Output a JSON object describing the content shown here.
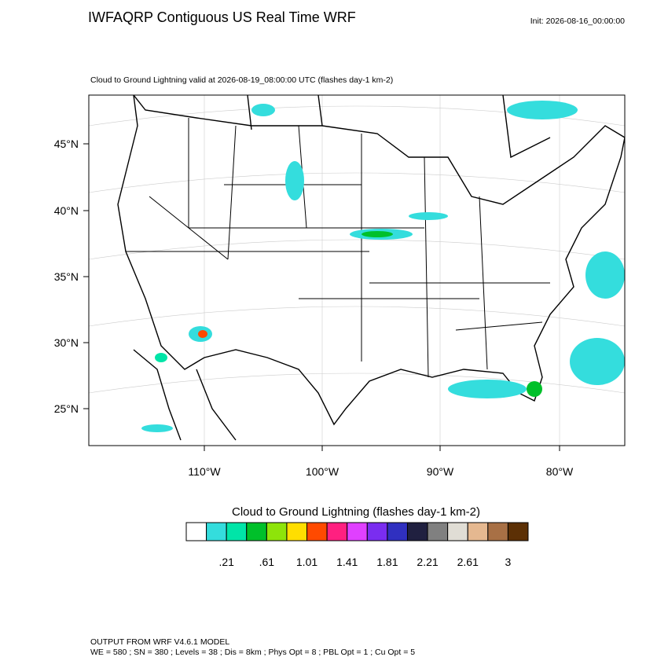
{
  "header": {
    "title": "IWFAQRP Contiguous US Real Time WRF",
    "init": "Init: 2026-08-16_00:00:00"
  },
  "map": {
    "subtitle": "Cloud to Ground Lightning valid at 2026-08-19_08:00:00 UTC   (flashes day-1 km-2)",
    "lat_labels": [
      "45°N",
      "40°N",
      "35°N",
      "30°N",
      "25°N"
    ],
    "lon_labels": [
      "110°W",
      "100°W",
      "90°W",
      "80°W"
    ]
  },
  "colorbar": {
    "title": "Cloud to Ground Lightning  (flashes day-1 km-2)",
    "colors": [
      "#ffffff",
      "#34dddd",
      "#00e5a8",
      "#00c02a",
      "#8ee40a",
      "#ffde00",
      "#ff4a00",
      "#ff2080",
      "#e040ff",
      "#7a2df0",
      "#3030c0",
      "#202040",
      "#808080",
      "#e0ddd5",
      "#e5b890",
      "#a87045",
      "#5c3005"
    ],
    "labels": [
      ".21",
      ".61",
      "1.01",
      "1.41",
      "1.81",
      "2.21",
      "2.61",
      "3"
    ]
  },
  "footer": {
    "lines": [
      "OUTPUT FROM WRF V4.6.1 MODEL",
      "WE = 580 ; SN = 380 ; Levels = 38 ; Dis = 8km ; Phys Opt = 8 ; PBL Opt = 1 ; Cu Opt = 5"
    ]
  }
}
